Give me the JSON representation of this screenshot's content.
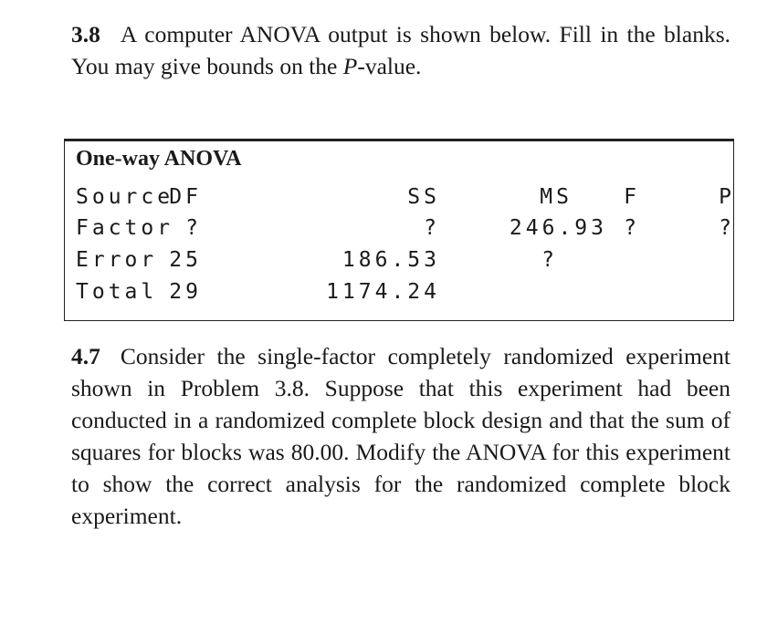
{
  "problem_3_8": {
    "number": "3.8",
    "text_pre": "A computer ANOVA output is shown below. Fill in the blanks. You may give bounds on the ",
    "text_italic": "P",
    "text_post": "-value."
  },
  "anova_table": {
    "title": "One-way ANOVA",
    "headers": [
      "Source",
      "DF",
      "SS",
      "MS",
      "F",
      "P"
    ],
    "rows": [
      [
        "Factor",
        "?",
        "?",
        "246.93",
        "?",
        "?"
      ],
      [
        "Error",
        "25",
        "186.53",
        "?",
        "",
        ""
      ],
      [
        "Total",
        "29",
        "1174.24",
        "",
        "",
        ""
      ]
    ]
  },
  "problem_4_7": {
    "number": "4.7",
    "text": "Consider the single-factor completely randomized experiment shown in Problem 3.8. Suppose that this experiment had been conducted in a randomized complete block design and that the sum of squares for blocks was 80.00. Modify the ANOVA for this experiment to show the correct analysis for the randomized complete block experiment."
  }
}
